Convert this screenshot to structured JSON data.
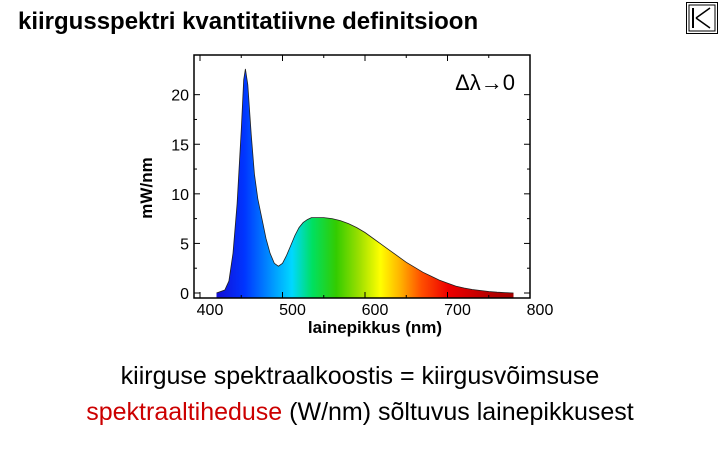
{
  "page": {
    "title": "kiirgusspektri kvantitatiivne definitsioon",
    "caption_line1": "kiirguse spektraalkoostis = kiirgusvõimsuse",
    "caption_line2_highlight": "spektraaltiheduse",
    "caption_line2_rest": " (W/nm) sõltuvus lainepikkusest",
    "highlight_color": "#cc0000",
    "nav_icon": "return-to-start-icon"
  },
  "chart_data": {
    "type": "area",
    "title": "",
    "annotation": "Δλ→0",
    "xlabel": "lainepikkus (nm)",
    "ylabel": "mW/nm",
    "xlim": [
      400,
      800
    ],
    "ylim": [
      0,
      24
    ],
    "x_ticks": [
      400,
      500,
      600,
      700,
      800
    ],
    "y_ticks": [
      0,
      5,
      10,
      15,
      20
    ],
    "grid": false,
    "fill": "visible-spectrum-gradient",
    "series": [
      {
        "x": [
          420,
          430,
          435,
          440,
          445,
          450,
          453,
          455,
          458,
          462,
          466,
          470,
          475,
          480,
          485,
          490,
          495,
          500,
          505,
          510,
          515,
          520,
          525,
          530,
          535,
          540,
          545,
          550,
          560,
          570,
          580,
          590,
          600,
          610,
          620,
          630,
          640,
          650,
          660,
          670,
          680,
          690,
          700,
          710,
          720,
          730,
          740,
          750,
          760,
          770,
          780
        ],
        "y": [
          0,
          0.3,
          1.2,
          4.0,
          9.0,
          16.5,
          21.5,
          22.6,
          21.0,
          16.0,
          12.0,
          9.5,
          7.5,
          5.5,
          4.0,
          3.0,
          2.7,
          3.0,
          3.8,
          4.8,
          5.8,
          6.6,
          7.1,
          7.4,
          7.6,
          7.6,
          7.6,
          7.6,
          7.5,
          7.3,
          7.0,
          6.6,
          6.1,
          5.5,
          4.9,
          4.3,
          3.7,
          3.1,
          2.6,
          2.1,
          1.7,
          1.3,
          1.0,
          0.7,
          0.5,
          0.35,
          0.25,
          0.15,
          0.08,
          0.04,
          0
        ]
      }
    ]
  }
}
